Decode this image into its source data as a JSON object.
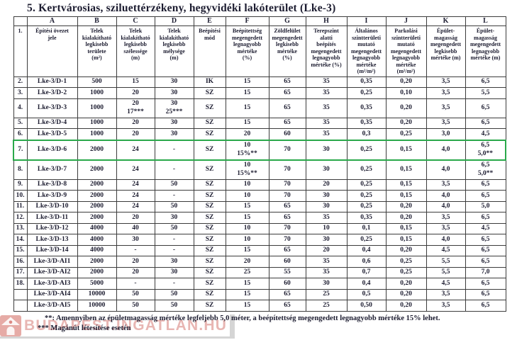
{
  "title": "5. Kertvárosias, sziluettérzékeny, hegyvidéki lakóterület (Lke-3)",
  "colors": {
    "highlight_border_green": "#2aa84a",
    "watermark_salmon": "#d67a74",
    "table_border": "#3c3c3c",
    "text": "#1c1c30"
  },
  "table": {
    "letter_row": [
      "",
      "A",
      "B",
      "C",
      "D",
      "E",
      "F",
      "G",
      "H",
      "I",
      "J",
      "K",
      "L"
    ],
    "header_row": {
      "num": "1.",
      "cells": [
        "Építési övezet\njele",
        "Telek\nkialakítható\nlegkisebb\nterülete\n(m²)",
        "Telek\nkialakítható\nlegkisebb\nszélessége\n(m)",
        "Telek\nkialakítható\nlegkisebb\nmélysége\n(m)",
        "Beépítési\nmód",
        "Beépítettség\nmegengedett\nlegnagyobb\nmértéke\n(%)",
        "Zöldfelület\nmegengedett\nlegkisebb\nmértéke\n(%)",
        "Terepszint\nalatti\nbeépítés\nmegengedett\nlegnagyobb\nmértéke (%)",
        "Általános\nszintterületi\nmutató\nmegengedett\nlegnagyobb\nmértéke\n(m²/m²)",
        "Parkolási\nszintterületi\nmutató\nmegengedett\nlegnagyobb\nmértéke\n(m²/m²)",
        "Épület-\nmagasság\nmegengedett\nlegkisebb\nmértéke (m)",
        "Épület-\nmagasság\nmegengedett\nlegnagyobb\nmértéke (m)"
      ]
    },
    "rows": [
      {
        "num": "2.",
        "highlight": false,
        "cells": [
          "Lke-3/D-1",
          "500",
          "15",
          "30",
          "IK",
          "15",
          "65",
          "35",
          "0,35",
          "0,20",
          "3,5",
          "6,5"
        ]
      },
      {
        "num": "3.",
        "highlight": false,
        "cells": [
          "Lke-3/D-2",
          "1000",
          "20",
          "30",
          "SZ",
          "15",
          "65",
          "35",
          "0,25",
          "0,10",
          "3,5",
          "5,5"
        ]
      },
      {
        "num": "4.",
        "highlight": false,
        "cells": [
          "Lke-3/D-3",
          "1000",
          "20\n17***",
          "30\n25***",
          "SZ",
          "15",
          "65",
          "35",
          "0,35",
          "0,20",
          "3,5",
          "6,5"
        ]
      },
      {
        "num": "5.",
        "highlight": false,
        "cells": [
          "Lke-3/D-4",
          "1000",
          "20",
          "30",
          "SZ",
          "15",
          "65",
          "35",
          "0,35",
          "0,20",
          "3,5",
          "6,5"
        ]
      },
      {
        "num": "6.",
        "highlight": false,
        "cells": [
          "Lke-3/D-5",
          "1000",
          "20",
          "30",
          "SZ",
          "20",
          "60",
          "35",
          "0,3",
          "0,25",
          "3,0",
          "4,5"
        ]
      },
      {
        "num": "7.",
        "highlight": true,
        "cells": [
          "Lke-3/D-6",
          "2000",
          "24",
          "-",
          "SZ",
          "10\n15%**",
          "70",
          "30",
          "0,25",
          "0,15",
          "4,0",
          "6,5\n5,0**"
        ]
      },
      {
        "num": "8.",
        "highlight": false,
        "cells": [
          "Lke-3/D-7",
          "2000",
          "24",
          "-",
          "SZ",
          "10\n15%**",
          "70",
          "30",
          "0,25",
          "0,15",
          "4,0",
          "6,5\n5,0**"
        ]
      },
      {
        "num": "9.",
        "highlight": false,
        "cells": [
          "Lke-3/D-8",
          "2000",
          "24",
          "50",
          "SZ",
          "10",
          "70",
          "20",
          "0,25",
          "0,15",
          "3,5",
          "6,5"
        ]
      },
      {
        "num": "10.",
        "highlight": false,
        "cells": [
          "Lke-3/D-9",
          "2000",
          "24",
          "-",
          "SZ",
          "10",
          "70",
          "30",
          "0,25",
          "0,15",
          "4,0",
          "6,5"
        ]
      },
      {
        "num": "11.",
        "highlight": false,
        "cells": [
          "Lke-3/D-10",
          "2000",
          "24",
          "50",
          "SZ",
          "15",
          "65",
          "30",
          "0,25",
          "0,20",
          "4,0",
          "5,0"
        ]
      },
      {
        "num": "12.",
        "highlight": false,
        "cells": [
          "Lke-3/D-11",
          "2000",
          "20",
          "30",
          "SZ",
          "15",
          "65",
          "35",
          "0,35",
          "0,20",
          "3,5",
          "6,5"
        ]
      },
      {
        "num": "13.",
        "highlight": false,
        "cells": [
          "Lke-3/D-12",
          "4000",
          "40",
          "50",
          "SZ",
          "10",
          "70",
          "10",
          "0,1",
          "0,15",
          "3,5",
          "4,5"
        ]
      },
      {
        "num": "14.",
        "highlight": false,
        "cells": [
          "Lke-3/D-13",
          "4000",
          "30",
          "-",
          "SZ",
          "10",
          "70",
          "30",
          "0,25",
          "0,15",
          "4,0",
          "6,5"
        ]
      },
      {
        "num": "15.",
        "highlight": false,
        "cells": [
          "Lke-3/D-14",
          "4000",
          "-",
          "-",
          "SZ",
          "15",
          "65",
          "20",
          "0,4",
          "0,20",
          "4,5",
          "6,5"
        ]
      },
      {
        "num": "16.",
        "highlight": false,
        "cells": [
          "Lke-3/D-AI1",
          "2000",
          "20",
          "30",
          "SZ",
          "20",
          "60",
          "35",
          "0,6",
          "0,25",
          "5,5",
          "6,5"
        ]
      },
      {
        "num": "17.",
        "highlight": false,
        "cells": [
          "Lke-3/D-AI2",
          "2000",
          "20",
          "30",
          "SZ",
          "25",
          "55",
          "35",
          "0,7",
          "0,25",
          "5,5",
          "7,0"
        ]
      },
      {
        "num": "18.",
        "highlight": false,
        "cells": [
          "Lke-3/D-AI3",
          "5000",
          "-",
          "-",
          "SZ",
          "15",
          "60",
          "30",
          "0,4",
          "0,20",
          "4,5",
          "6,5"
        ]
      },
      {
        "num": "",
        "highlight": false,
        "cells": [
          "Lke-3/D-AI4",
          "10000",
          "50",
          "50",
          "SZ",
          "15",
          "65",
          "25",
          "0,5",
          "0,20",
          "3,5",
          "6,5"
        ]
      },
      {
        "num": "",
        "highlight": false,
        "cells": [
          "Lke-3/D-AI5",
          "10000",
          "50",
          "50",
          "SZ",
          "15",
          "65",
          "25",
          "0,50",
          "0,20",
          "3,5",
          "6,5"
        ]
      }
    ]
  },
  "footnotes": [
    "**: Amennyiben az épületmagasság mértéke legfeljebb 5,0 méter, a beépítettség megengedett legnagyobb mértéke 15% lehet.",
    "*** Magánút létesítése esetén"
  ],
  "watermark": {
    "text": "BUDAPEST.INGATLAN.HU",
    "icon": "house-icon"
  }
}
